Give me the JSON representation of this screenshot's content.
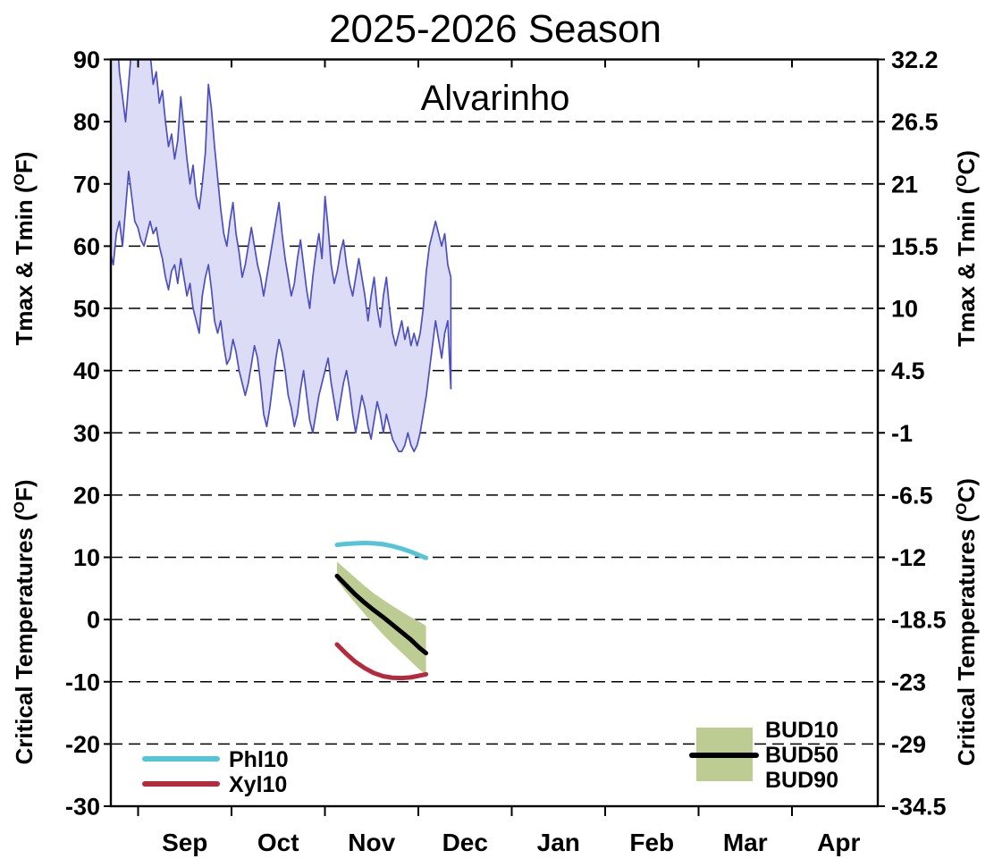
{
  "title": "2025-2026 Season",
  "subtitle": "Alvarinho",
  "colors": {
    "tmax_tmin_line": "#4d4fc1",
    "tmax_tmin_fill": "#dcdcf6",
    "phl10": "#54c4d6",
    "xyl10": "#b32b3c",
    "bud_band": "#bdcc92",
    "bud50_line": "#000000",
    "grid": "#000000",
    "frame": "#000000"
  },
  "axes": {
    "left_top_label": {
      "pre": "Tmax & Tmin (",
      "sup": "O",
      "post": "F)"
    },
    "left_bottom_label": {
      "pre": "Critical Temperatures (",
      "sup": "O",
      "post": "F)"
    },
    "right_top_label": {
      "pre": "Tmax & Tmin (",
      "sup": "O",
      "post": "C)"
    },
    "right_bottom_label": {
      "pre": "Critical Temperatures (",
      "sup": "O",
      "post": "C)"
    },
    "left_tick_labels_f": [
      "90",
      "80",
      "70",
      "60",
      "50",
      "40",
      "30",
      "20",
      "10",
      "0",
      "-10",
      "-20",
      "-30"
    ],
    "right_tick_labels_c": [
      "32.2",
      "26.5",
      "21",
      "15.5",
      "10",
      "4.5",
      "-1",
      "-6.5",
      "-12",
      "-18.5",
      "-23",
      "-29",
      "-34.5"
    ],
    "month_labels": [
      "Sep",
      "Oct",
      "Nov",
      "Dec",
      "Jan",
      "Feb",
      "Mar",
      "Apr"
    ]
  },
  "legend_left": [
    {
      "label": "Phl10",
      "color": "#54c4d6"
    },
    {
      "label": "Xyl10",
      "color": "#b32b3c"
    }
  ],
  "legend_right": {
    "labels": [
      "BUD10",
      "BUD50",
      "BUD90"
    ],
    "band_color": "#bdcc92",
    "line_color": "#000000"
  },
  "chart_data": {
    "type": "area+line",
    "title": "2025-2026 Season",
    "subtitle": "Alvarinho",
    "x_axis": {
      "unit": "months",
      "labels": [
        "Sep",
        "Oct",
        "Nov",
        "Dec",
        "Jan",
        "Feb",
        "Mar",
        "Apr"
      ]
    },
    "y_axis_left_f": {
      "label": "Tmax & Tmin / Critical Temperatures (°F)",
      "min": -30,
      "max": 90,
      "ticks": [
        90,
        80,
        70,
        60,
        50,
        40,
        30,
        20,
        10,
        0,
        -10,
        -20,
        -30
      ],
      "grid": "dashed"
    },
    "y_axis_right_c": {
      "label": "Tmax & Tmin / Critical Temperatures (°C)",
      "tick_labels": [
        "32.2",
        "26.5",
        "21",
        "15.5",
        "10",
        "4.5",
        "-1",
        "-6.5",
        "-12",
        "-18.5",
        "-23",
        "-29",
        "-34.5"
      ]
    },
    "tmax_tmin": {
      "description": "Daily maximum and minimum air temperature band (°F), estimated from plot",
      "start_date": "Aug 23",
      "end_date": "Dec 12",
      "tmax_f": [
        91,
        94,
        96,
        88,
        84,
        80,
        86,
        92,
        95,
        96,
        94,
        92,
        93,
        91,
        86,
        88,
        83,
        85,
        80,
        76,
        78,
        74,
        77,
        84,
        79,
        74,
        70,
        73,
        68,
        66,
        70,
        75,
        86,
        82,
        76,
        71,
        66,
        62,
        60,
        64,
        67,
        62,
        59,
        55,
        57,
        60,
        63,
        60,
        57,
        55,
        52,
        55,
        58,
        61,
        64,
        67,
        62,
        58,
        55,
        52,
        54,
        58,
        61,
        57,
        53,
        50,
        55,
        59,
        62,
        58,
        68,
        63,
        57,
        54,
        56,
        59,
        61,
        57,
        54,
        52,
        55,
        58,
        55,
        52,
        48,
        52,
        55,
        50,
        47,
        52,
        55,
        50,
        46,
        44,
        46,
        48,
        45,
        47,
        44,
        46,
        44,
        46,
        50,
        56,
        60,
        62,
        64,
        62,
        60,
        62,
        57,
        55
      ],
      "tmin_f": [
        59,
        57,
        62,
        64,
        60,
        66,
        72,
        68,
        64,
        63,
        61,
        60,
        62,
        64,
        62,
        63,
        60,
        58,
        55,
        53,
        56,
        57,
        54,
        58,
        55,
        52,
        54,
        50,
        48,
        46,
        52,
        55,
        57,
        53,
        48,
        46,
        48,
        44,
        41,
        42,
        45,
        43,
        40,
        38,
        36,
        38,
        41,
        44,
        42,
        38,
        33,
        31,
        34,
        38,
        42,
        45,
        43,
        40,
        36,
        34,
        31,
        33,
        37,
        40,
        36,
        32,
        30,
        33,
        36,
        38,
        40,
        42,
        38,
        35,
        32,
        35,
        38,
        40,
        37,
        33,
        30,
        33,
        36,
        34,
        31,
        29,
        32,
        35,
        33,
        30,
        33,
        31,
        29,
        28,
        27,
        27,
        28,
        30,
        28,
        27,
        28,
        30,
        33,
        36,
        40,
        44,
        48,
        45,
        42,
        46,
        48,
        37
      ]
    },
    "critical_temperatures": {
      "description": "Critical temperature curves (°F), Nov 4 - Dec 3, estimated from plot",
      "start_date": "Nov 4",
      "day_offsets": [
        0,
        3,
        6,
        9,
        12,
        15,
        18,
        21,
        24,
        27,
        29
      ],
      "series": [
        {
          "name": "Phl10",
          "values": [
            12.0,
            12.15,
            12.25,
            12.3,
            12.25,
            12.1,
            11.8,
            11.4,
            10.9,
            10.3,
            9.9
          ]
        },
        {
          "name": "BUD10",
          "values": [
            9.3,
            8.0,
            6.7,
            5.4,
            4.2,
            3.2,
            2.2,
            1.3,
            0.4,
            -0.4,
            -1.0
          ]
        },
        {
          "name": "BUD50",
          "values": [
            7.0,
            5.5,
            4.0,
            2.7,
            1.5,
            0.4,
            -0.8,
            -2.0,
            -3.2,
            -4.6,
            -5.4
          ]
        },
        {
          "name": "BUD90",
          "values": [
            6.3,
            4.4,
            2.6,
            0.9,
            -0.8,
            -2.4,
            -3.9,
            -5.3,
            -6.7,
            -8.1,
            -8.9
          ]
        },
        {
          "name": "Xyl10",
          "values": [
            -4.0,
            -5.5,
            -6.8,
            -7.8,
            -8.6,
            -9.1,
            -9.35,
            -9.4,
            -9.3,
            -9.0,
            -8.8
          ]
        }
      ]
    }
  }
}
